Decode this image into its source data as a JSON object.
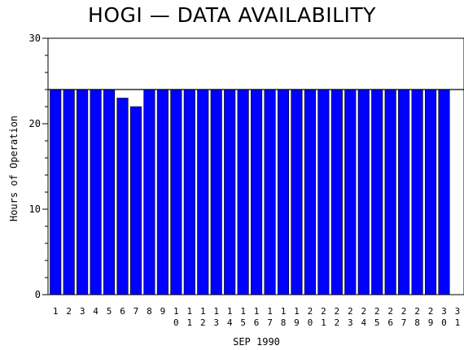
{
  "chart_data": {
    "type": "bar",
    "title": "HOGI — DATA AVAILABILITY",
    "xlabel": "SEP 1990",
    "ylabel": "Hours of Operation",
    "ylim": [
      0,
      30
    ],
    "yticks": [
      0,
      10,
      20,
      30
    ],
    "grid": false,
    "categories": [
      "1",
      "2",
      "3",
      "4",
      "5",
      "6",
      "7",
      "8",
      "9",
      "10",
      "11",
      "12",
      "13",
      "14",
      "15",
      "16",
      "17",
      "18",
      "19",
      "20",
      "21",
      "22",
      "23",
      "24",
      "25",
      "26",
      "27",
      "28",
      "29",
      "30",
      "31"
    ],
    "values": [
      24,
      24,
      24,
      24,
      24,
      23,
      22,
      24,
      24,
      24,
      24,
      24,
      24,
      24,
      24,
      24,
      24,
      24,
      24,
      24,
      24,
      24,
      24,
      24,
      24,
      24,
      24,
      24,
      24,
      24,
      0
    ],
    "reference_line": 24,
    "bar_color": "#0000ff"
  }
}
